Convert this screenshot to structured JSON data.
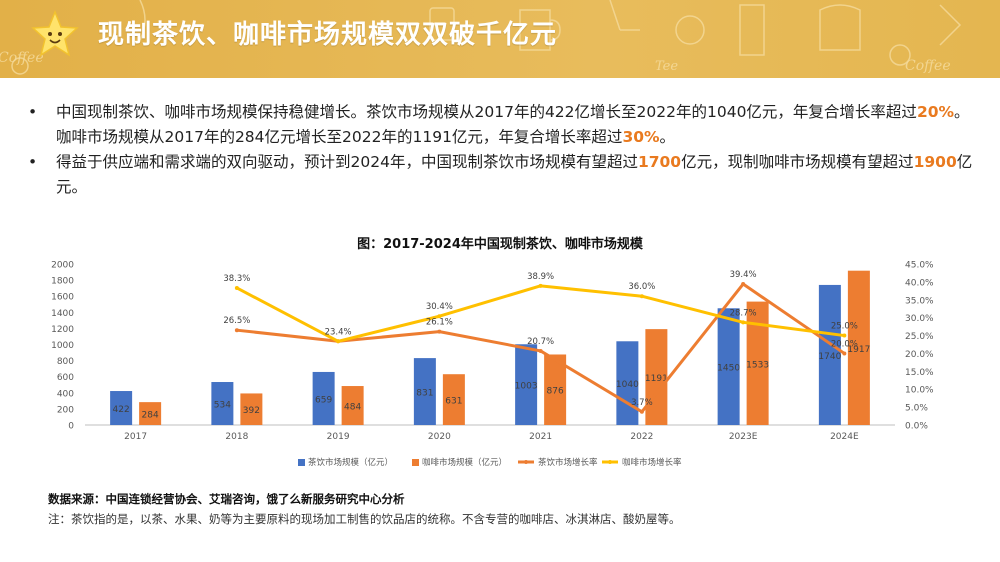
{
  "header": {
    "title": "现制茶饮、咖啡市场规模双双破千亿元",
    "decor_text": [
      "Coffee",
      "Coffee",
      "Tee"
    ]
  },
  "bullets": [
    {
      "parts": [
        {
          "text": "中国现制茶饮、咖啡市场规模保持稳健增长。茶饮市场规模从2017年的422亿增长至2022年的1040亿元，年复合增长率超过",
          "hl": false
        },
        {
          "text": "20%",
          "hl": true
        },
        {
          "text": "。咖啡市场规模从2017年的284亿元增长至2022年的1191亿元，年复合增长率超过",
          "hl": false
        },
        {
          "text": "30%",
          "hl": true
        },
        {
          "text": "。",
          "hl": false
        }
      ]
    },
    {
      "parts": [
        {
          "text": "得益于供应端和需求端的双向驱动，预计到2024年，中国现制茶饮市场规模有望超过",
          "hl": false
        },
        {
          "text": "1700",
          "hl": true
        },
        {
          "text": "亿元，现制咖啡市场规模有望超过",
          "hl": false
        },
        {
          "text": "1900",
          "hl": true
        },
        {
          "text": "亿元。",
          "hl": false
        }
      ]
    }
  ],
  "bullet_symbol": "•",
  "colors": {
    "tea": "#4472c4",
    "coffee": "#ed7d31",
    "tea_growth": "#ed7d31",
    "coffee_growth": "#ffc000",
    "highlight": "#e97a1f"
  },
  "chart_data": {
    "type": "bar",
    "title": "图：2017-2024年中国现制茶饮、咖啡市场规模",
    "categories": [
      "2017",
      "2018",
      "2019",
      "2020",
      "2021",
      "2022",
      "2023E",
      "2024E"
    ],
    "series": [
      {
        "name": "茶饮市场规模（亿元）",
        "kind": "bar",
        "axis": "left",
        "values": [
          422,
          534,
          659,
          831,
          1003,
          1040,
          1450,
          1740
        ]
      },
      {
        "name": "咖啡市场规模（亿元）",
        "kind": "bar",
        "axis": "left",
        "values": [
          284,
          392,
          484,
          631,
          876,
          1191,
          1533,
          1917
        ]
      },
      {
        "name": "茶饮市场增长率",
        "kind": "line",
        "axis": "right",
        "values": [
          null,
          26.5,
          null,
          26.1,
          20.7,
          3.7,
          39.4,
          20.0
        ]
      },
      {
        "name": "咖啡市场增长率",
        "kind": "line",
        "axis": "right",
        "values": [
          null,
          38.3,
          23.4,
          30.4,
          38.9,
          36.0,
          28.7,
          25.0
        ]
      }
    ],
    "tea_growth_line": [
      null,
      26.5,
      23.4,
      26.1,
      20.7,
      3.7,
      39.4,
      20.0
    ],
    "coffee_growth_line": [
      null,
      38.3,
      23.4,
      30.4,
      38.9,
      36.0,
      28.7,
      25.0
    ],
    "left_axis": {
      "min": 0,
      "max": 2000,
      "ticks": [
        "0",
        "200",
        "400",
        "600",
        "800",
        "1000",
        "1200",
        "1400",
        "1600",
        "1800",
        "2000"
      ]
    },
    "right_axis": {
      "min": 0,
      "max": 45,
      "ticks": [
        "0.0%",
        "5.0%",
        "10.0%",
        "15.0%",
        "20.0%",
        "25.0%",
        "30.0%",
        "35.0%",
        "40.0%",
        "45.0%"
      ]
    },
    "label_suffix": "%",
    "grid": false,
    "legend_position": "bottom"
  },
  "footer": {
    "source": "数据来源：中国连锁经营协会、艾瑞咨询，饿了么新服务研究中心分析",
    "note": "注：茶饮指的是，以茶、水果、奶等为主要原料的现场加工制售的饮品店的统称。不含专营的咖啡店、冰淇淋店、酸奶屋等。"
  }
}
